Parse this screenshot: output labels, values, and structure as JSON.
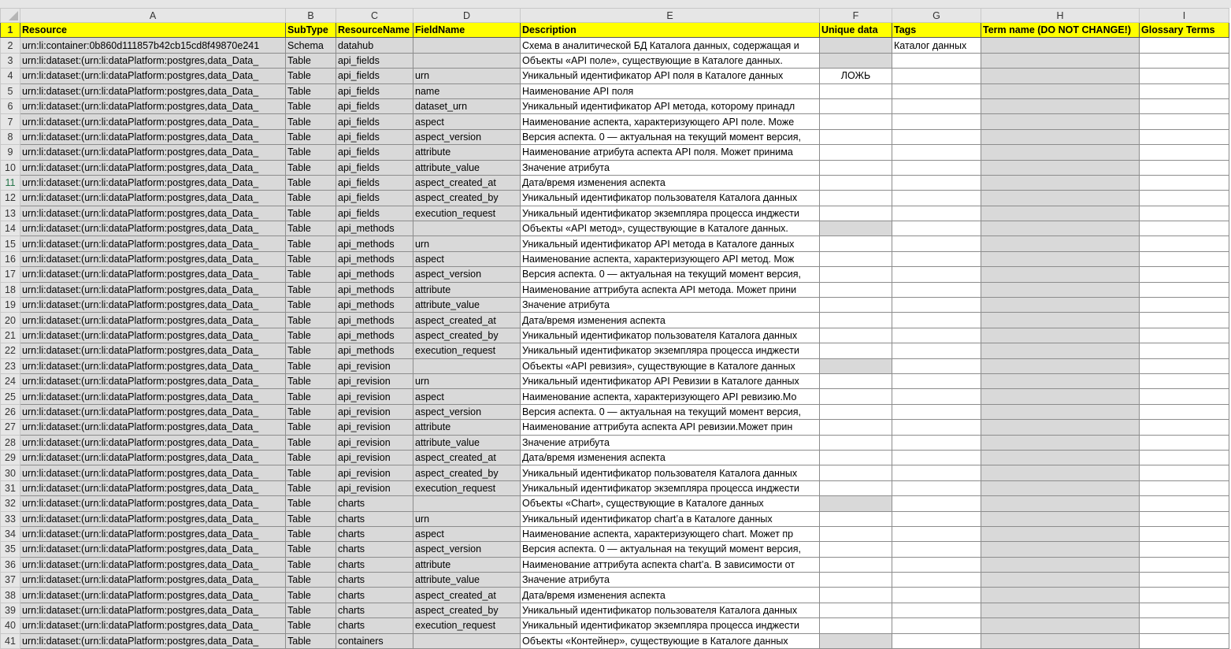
{
  "columns": [
    "A",
    "B",
    "C",
    "D",
    "E",
    "F",
    "G",
    "H",
    "I"
  ],
  "headers": [
    "Resource",
    "SubType",
    "ResourceName",
    "FieldName",
    "Description",
    "Unique data",
    "Tags",
    "Term name (DO NOT CHANGE!)",
    "Glossary Terms"
  ],
  "selected_row": 11,
  "colors": {
    "header_fill": "#ffff00",
    "locked_fill": "#d9d9d9",
    "selected_row_number": "#217346"
  },
  "rows": [
    [
      "urn:li:container:0b860d111857b42cb15cd8f49870e241",
      "Schema",
      "datahub",
      "",
      "Схема в аналитической БД Каталога данных, содержащая и",
      "",
      "Каталог данных",
      "",
      ""
    ],
    [
      "urn:li:dataset:(urn:li:dataPlatform:postgres,data_Data_",
      "Table",
      "api_fields",
      "",
      "Объекты «API поле», существующие в Каталоге данных.",
      "",
      "",
      "",
      ""
    ],
    [
      "urn:li:dataset:(urn:li:dataPlatform:postgres,data_Data_",
      "Table",
      "api_fields",
      "urn",
      "Уникальный идентификатор API поля в Каталоге данных",
      "ЛОЖЬ",
      "",
      "",
      ""
    ],
    [
      "urn:li:dataset:(urn:li:dataPlatform:postgres,data_Data_",
      "Table",
      "api_fields",
      "name",
      "Наименование API поля",
      "",
      "",
      "",
      ""
    ],
    [
      "urn:li:dataset:(urn:li:dataPlatform:postgres,data_Data_",
      "Table",
      "api_fields",
      "dataset_urn",
      "Уникальный идентификатор API метода, которому принадл",
      "",
      "",
      "",
      ""
    ],
    [
      "urn:li:dataset:(urn:li:dataPlatform:postgres,data_Data_",
      "Table",
      "api_fields",
      "aspect",
      "Наименование аспекта, характеризующего API поле. Може",
      "",
      "",
      "",
      ""
    ],
    [
      "urn:li:dataset:(urn:li:dataPlatform:postgres,data_Data_",
      "Table",
      "api_fields",
      "aspect_version",
      "Версия аспекта. 0 — актуальная на текущий момент версия,",
      "",
      "",
      "",
      ""
    ],
    [
      "urn:li:dataset:(urn:li:dataPlatform:postgres,data_Data_",
      "Table",
      "api_fields",
      "attribute",
      "Наименование атрибута аспекта API поля. Может принима",
      "",
      "",
      "",
      ""
    ],
    [
      "urn:li:dataset:(urn:li:dataPlatform:postgres,data_Data_",
      "Table",
      "api_fields",
      "attribute_value",
      "Значение атрибута",
      "",
      "",
      "",
      ""
    ],
    [
      "urn:li:dataset:(urn:li:dataPlatform:postgres,data_Data_",
      "Table",
      "api_fields",
      "aspect_created_at",
      "Дата/время изменения аспекта",
      "",
      "",
      "",
      ""
    ],
    [
      "urn:li:dataset:(urn:li:dataPlatform:postgres,data_Data_",
      "Table",
      "api_fields",
      "aspect_created_by",
      "Уникальный идентификатор пользователя Каталога данных",
      "",
      "",
      "",
      ""
    ],
    [
      "urn:li:dataset:(urn:li:dataPlatform:postgres,data_Data_",
      "Table",
      "api_fields",
      "execution_request",
      "Уникальный идентификатор экземпляра процесса инджести",
      "",
      "",
      "",
      ""
    ],
    [
      "urn:li:dataset:(urn:li:dataPlatform:postgres,data_Data_",
      "Table",
      "api_methods",
      "",
      "Объекты «API метод», существующие в Каталоге данных.",
      "",
      "",
      "",
      ""
    ],
    [
      "urn:li:dataset:(urn:li:dataPlatform:postgres,data_Data_",
      "Table",
      "api_methods",
      "urn",
      "Уникальный идентификатор API метода в Каталоге данных",
      "",
      "",
      "",
      ""
    ],
    [
      "urn:li:dataset:(urn:li:dataPlatform:postgres,data_Data_",
      "Table",
      "api_methods",
      "aspect",
      "Наименование аспекта, характеризующего API метод. Мож",
      "",
      "",
      "",
      ""
    ],
    [
      "urn:li:dataset:(urn:li:dataPlatform:postgres,data_Data_",
      "Table",
      "api_methods",
      "aspect_version",
      "Версия аспекта. 0 — актуальная на текущий момент версия,",
      "",
      "",
      "",
      ""
    ],
    [
      "urn:li:dataset:(urn:li:dataPlatform:postgres,data_Data_",
      "Table",
      "api_methods",
      "attribute",
      "Наименование аттрибута аспекта API метода. Может прини",
      "",
      "",
      "",
      ""
    ],
    [
      "urn:li:dataset:(urn:li:dataPlatform:postgres,data_Data_",
      "Table",
      "api_methods",
      "attribute_value",
      "Значение атрибута",
      "",
      "",
      "",
      ""
    ],
    [
      "urn:li:dataset:(urn:li:dataPlatform:postgres,data_Data_",
      "Table",
      "api_methods",
      "aspect_created_at",
      "Дата/время изменения аспекта",
      "",
      "",
      "",
      ""
    ],
    [
      "urn:li:dataset:(urn:li:dataPlatform:postgres,data_Data_",
      "Table",
      "api_methods",
      "aspect_created_by",
      "Уникальный идентификатор пользователя Каталога данных",
      "",
      "",
      "",
      ""
    ],
    [
      "urn:li:dataset:(urn:li:dataPlatform:postgres,data_Data_",
      "Table",
      "api_methods",
      "execution_request",
      "Уникальный идентификатор экземпляра процесса инджести",
      "",
      "",
      "",
      ""
    ],
    [
      "urn:li:dataset:(urn:li:dataPlatform:postgres,data_Data_",
      "Table",
      "api_revision",
      "",
      "Объекты «API ревизия», существующие в Каталоге данных",
      "",
      "",
      "",
      ""
    ],
    [
      "urn:li:dataset:(urn:li:dataPlatform:postgres,data_Data_",
      "Table",
      "api_revision",
      "urn",
      "Уникальный идентификатор API Ревизии в Каталоге данных",
      "",
      "",
      "",
      ""
    ],
    [
      "urn:li:dataset:(urn:li:dataPlatform:postgres,data_Data_",
      "Table",
      "api_revision",
      "aspect",
      "Наименование аспекта, характеризующего API ревизию.Мо",
      "",
      "",
      "",
      ""
    ],
    [
      "urn:li:dataset:(urn:li:dataPlatform:postgres,data_Data_",
      "Table",
      "api_revision",
      "aspect_version",
      "Версия аспекта. 0 — актуальная на текущий момент версия,",
      "",
      "",
      "",
      ""
    ],
    [
      "urn:li:dataset:(urn:li:dataPlatform:postgres,data_Data_",
      "Table",
      "api_revision",
      "attribute",
      "Наименование аттрибута аспекта API ревизии.Может прин",
      "",
      "",
      "",
      ""
    ],
    [
      "urn:li:dataset:(urn:li:dataPlatform:postgres,data_Data_",
      "Table",
      "api_revision",
      "attribute_value",
      "Значение атрибута",
      "",
      "",
      "",
      ""
    ],
    [
      "urn:li:dataset:(urn:li:dataPlatform:postgres,data_Data_",
      "Table",
      "api_revision",
      "aspect_created_at",
      "Дата/время изменения аспекта",
      "",
      "",
      "",
      ""
    ],
    [
      "urn:li:dataset:(urn:li:dataPlatform:postgres,data_Data_",
      "Table",
      "api_revision",
      "aspect_created_by",
      "Уникальный идентификатор пользователя Каталога данных",
      "",
      "",
      "",
      ""
    ],
    [
      "urn:li:dataset:(urn:li:dataPlatform:postgres,data_Data_",
      "Table",
      "api_revision",
      "execution_request",
      "Уникальный идентификатор экземпляра процесса инджести",
      "",
      "",
      "",
      ""
    ],
    [
      "urn:li:dataset:(urn:li:dataPlatform:postgres,data_Data_",
      "Table",
      "charts",
      "",
      "Объекты «Chart», существующие в Каталоге данных",
      "",
      "",
      "",
      ""
    ],
    [
      "urn:li:dataset:(urn:li:dataPlatform:postgres,data_Data_",
      "Table",
      "charts",
      "urn",
      "Уникальный идентификатор chart’а в Каталоге данных",
      "",
      "",
      "",
      ""
    ],
    [
      "urn:li:dataset:(urn:li:dataPlatform:postgres,data_Data_",
      "Table",
      "charts",
      "aspect",
      "Наименование аспекта, характеризующего chart. Может пр",
      "",
      "",
      "",
      ""
    ],
    [
      "urn:li:dataset:(urn:li:dataPlatform:postgres,data_Data_",
      "Table",
      "charts",
      "aspect_version",
      "Версия аспекта. 0 — актуальная на текущий момент версия,",
      "",
      "",
      "",
      ""
    ],
    [
      "urn:li:dataset:(urn:li:dataPlatform:postgres,data_Data_",
      "Table",
      "charts",
      "attribute",
      "Наименование аттрибута аспекта chart’а. В зависимости от",
      "",
      "",
      "",
      ""
    ],
    [
      "urn:li:dataset:(urn:li:dataPlatform:postgres,data_Data_",
      "Table",
      "charts",
      "attribute_value",
      "Значение атрибута",
      "",
      "",
      "",
      ""
    ],
    [
      "urn:li:dataset:(urn:li:dataPlatform:postgres,data_Data_",
      "Table",
      "charts",
      "aspect_created_at",
      "Дата/время изменения аспекта",
      "",
      "",
      "",
      ""
    ],
    [
      "urn:li:dataset:(urn:li:dataPlatform:postgres,data_Data_",
      "Table",
      "charts",
      "aspect_created_by",
      "Уникальный идентификатор пользователя Каталога данных",
      "",
      "",
      "",
      ""
    ],
    [
      "urn:li:dataset:(urn:li:dataPlatform:postgres,data_Data_",
      "Table",
      "charts",
      "execution_request",
      "Уникальный идентификатор экземпляра процесса инджести",
      "",
      "",
      "",
      ""
    ],
    [
      "urn:li:dataset:(urn:li:dataPlatform:postgres,data_Data_",
      "Table",
      "containers",
      "",
      "Объекты «Контейнер», существующие в Каталоге данных",
      "",
      "",
      "",
      ""
    ]
  ]
}
